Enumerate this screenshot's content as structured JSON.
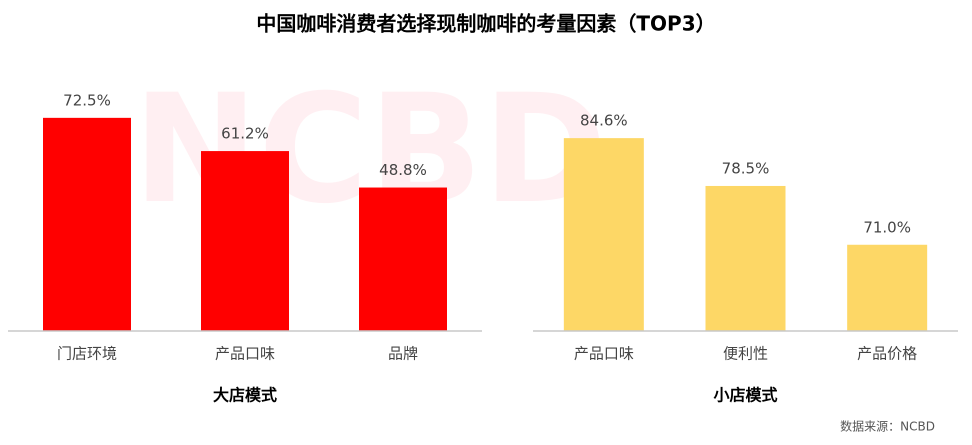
{
  "title": "中国咖啡消费者选择现制咖啡的考量因素（TOP3）",
  "watermark": "NCBD",
  "source": "数据来源：NCBD",
  "chart_data": [
    {
      "type": "bar",
      "title": "大店模式",
      "categories": [
        "门店环境",
        "产品口味",
        "品牌"
      ],
      "values": [
        72.5,
        61.2,
        48.8
      ],
      "value_labels": [
        "72.5%",
        "61.2%",
        "48.8%"
      ],
      "color": "#ff0000",
      "ylim": [
        0,
        100
      ]
    },
    {
      "type": "bar",
      "title": "小店模式",
      "categories": [
        "产品口味",
        "便利性",
        "产品价格"
      ],
      "values": [
        84.6,
        78.5,
        71.0
      ],
      "value_labels": [
        "84.6%",
        "78.5%",
        "71.0%"
      ],
      "color": "#fdd766",
      "ylim": [
        60,
        97.5
      ]
    }
  ]
}
